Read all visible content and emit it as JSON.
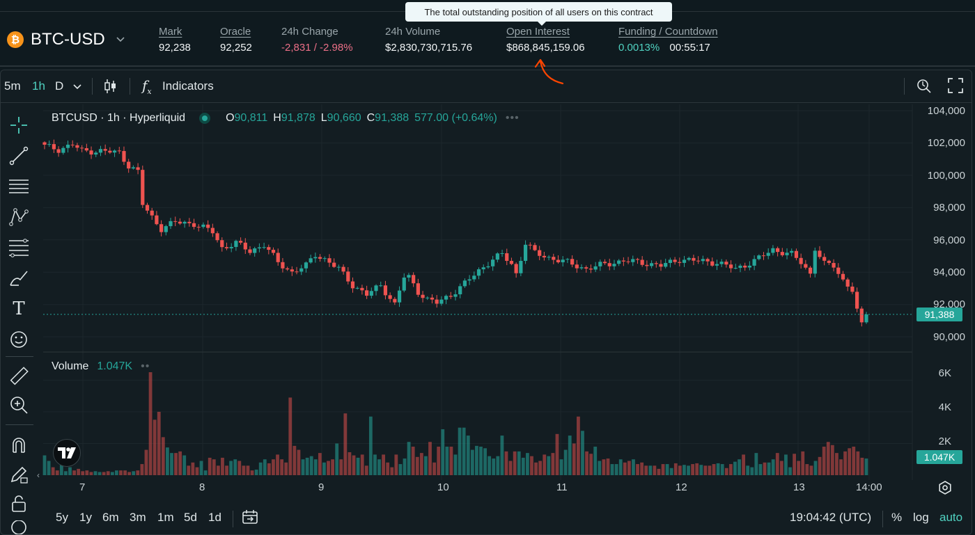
{
  "header": {
    "symbol": "BTC-USD",
    "coin_glyph": "₿",
    "stats": [
      {
        "label": "Mark",
        "value": "92,238",
        "underlined": true
      },
      {
        "label": "Oracle",
        "value": "92,252",
        "underlined": true
      },
      {
        "label": "24h Change",
        "value": "-2,831 / -2.98%",
        "underlined": false
      },
      {
        "label": "24h Volume",
        "value": "$2,830,730,715.76",
        "underlined": false
      },
      {
        "label": "Open Interest",
        "value": "$868,845,159.06",
        "underlined": true
      },
      {
        "label": "Funding / Countdown",
        "value": "0.0013%",
        "value2": "00:55:17",
        "underlined": true
      }
    ],
    "tooltip": "The total outstanding position of all users on this contract"
  },
  "toolbar": {
    "intervals": [
      "5m",
      "1h",
      "D"
    ],
    "active_interval": "1h",
    "indicators_label": "Indicators"
  },
  "legend": {
    "symbol_line": "BTCUSD · 1h · Hyperliquid",
    "open_key": "O",
    "open": "90,811",
    "high_key": "H",
    "high": "91,878",
    "low_key": "L",
    "low": "90,660",
    "close_key": "C",
    "close": "91,388",
    "change": "577.00 (+0.64%)",
    "volume_label": "Volume",
    "volume_value": "1.047K"
  },
  "price_axis": [
    "104,000",
    "102,000",
    "100,000",
    "98,000",
    "96,000",
    "94,000",
    "92,000",
    "90,000"
  ],
  "volume_axis": [
    "6K",
    "4K",
    "2K"
  ],
  "last_price_badge": "91,388",
  "last_volume_badge": "1.047K",
  "time_axis": [
    "7",
    "8",
    "9",
    "10",
    "11",
    "12",
    "13",
    "14:00"
  ],
  "bottom_bar": {
    "ranges": [
      "5y",
      "1y",
      "6m",
      "3m",
      "1m",
      "5d",
      "1d"
    ],
    "clock": "19:04:42 (UTC)",
    "percent": "%",
    "log": "log",
    "auto": "auto"
  },
  "colors": {
    "up": "#26a69a",
    "down": "#ef5350",
    "accent": "#50d2c1",
    "annotation": "#ff4500"
  },
  "chart_data": {
    "type": "candlestick",
    "interval": "1h",
    "y_range": [
      89000,
      104500
    ],
    "volume_range": [
      0,
      7000
    ],
    "close_path": [
      [
        0,
        101800
      ],
      [
        3,
        101600
      ],
      [
        6,
        101900
      ],
      [
        8,
        101500
      ],
      [
        12,
        101500
      ],
      [
        16,
        101400
      ],
      [
        18,
        100600
      ],
      [
        20,
        100200
      ],
      [
        21,
        98200
      ],
      [
        23,
        97400
      ],
      [
        25,
        96700
      ],
      [
        28,
        97100
      ],
      [
        32,
        97000
      ],
      [
        36,
        96500
      ],
      [
        38,
        95500
      ],
      [
        41,
        95800
      ],
      [
        44,
        95300
      ],
      [
        47,
        95700
      ],
      [
        50,
        94600
      ],
      [
        53,
        94000
      ],
      [
        56,
        94400
      ],
      [
        58,
        95100
      ],
      [
        60,
        94800
      ],
      [
        63,
        94200
      ],
      [
        66,
        93200
      ],
      [
        69,
        92600
      ],
      [
        72,
        93200
      ],
      [
        75,
        92000
      ],
      [
        77,
        93700
      ],
      [
        78,
        93700
      ],
      [
        80,
        92800
      ],
      [
        82,
        92300
      ],
      [
        84,
        92100
      ],
      [
        87,
        92600
      ],
      [
        90,
        93300
      ],
      [
        93,
        94100
      ],
      [
        96,
        94800
      ],
      [
        98,
        95100
      ],
      [
        100,
        94500
      ],
      [
        101,
        93900
      ],
      [
        103,
        95800
      ],
      [
        105,
        95200
      ],
      [
        108,
        94900
      ],
      [
        112,
        94600
      ],
      [
        116,
        94200
      ],
      [
        120,
        94500
      ],
      [
        124,
        94700
      ],
      [
        128,
        94600
      ],
      [
        132,
        94400
      ],
      [
        136,
        94800
      ],
      [
        140,
        94700
      ],
      [
        144,
        94600
      ],
      [
        148,
        94200
      ],
      [
        152,
        94700
      ],
      [
        156,
        95400
      ],
      [
        160,
        95100
      ],
      [
        162,
        94600
      ],
      [
        164,
        93900
      ],
      [
        165,
        95500
      ],
      [
        167,
        94500
      ],
      [
        169,
        94400
      ],
      [
        171,
        93500
      ],
      [
        173,
        92900
      ],
      [
        174,
        91600
      ],
      [
        175,
        90700
      ],
      [
        176,
        91388
      ]
    ],
    "volume_bars": [
      1250,
      900,
      500,
      300,
      650,
      250,
      500,
      300,
      400,
      250,
      300,
      200,
      250,
      200,
      200,
      250,
      200,
      300,
      300,
      300,
      200,
      250,
      300,
      700,
      1600,
      6500,
      3500,
      4000,
      2400,
      1750,
      1400,
      1400,
      1500,
      1250,
      600,
      800,
      500,
      900,
      300,
      1100,
      1000,
      600,
      1100,
      600,
      900,
      1000,
      900,
      600,
      600,
      300,
      350,
      800,
      1000,
      750,
      1000,
      1300,
      1000,
      800,
      4900,
      1850,
      1600,
      1000,
      1100,
      1200,
      1000,
      1400,
      800,
      900,
      1000,
      2000,
      1000,
      3900,
      1450,
      1250,
      1100,
      1300,
      600,
      3700,
      1300,
      1000,
      1300,
      800,
      500,
      1300,
      700,
      1050,
      2100,
      1800,
      1150,
      1400,
      1200,
      2100,
      800,
      1800,
      2900,
      1800,
      1800,
      1300,
      3000,
      3000,
      2500,
      1600,
      1850,
      1800,
      1700,
      1200,
      1050,
      1200,
      2500,
      1500,
      900,
      1500,
      1500,
      1100,
      1400,
      1200,
      800,
      900,
      1300,
      1200,
      1400,
      2600,
      1000,
      1600,
      2500,
      2000,
      3700,
      2800,
      1500,
      1350,
      1800,
      900,
      1000,
      1050,
      700,
      700,
      1000,
      800,
      900,
      1000,
      700,
      800,
      600,
      600,
      600,
      400,
      700,
      700,
      450,
      750,
      600,
      650,
      600,
      700,
      750,
      650,
      600,
      600,
      700,
      750,
      700,
      450,
      700,
      850,
      1000,
      1300,
      600,
      500,
      1400,
      700,
      800,
      800,
      1000,
      1400,
      900,
      1300,
      500,
      1350,
      900,
      1500,
      700,
      600,
      900,
      1150,
      1800,
      2100,
      1900,
      1400,
      1000,
      1500,
      1700,
      1800,
      1500,
      1100,
      1050
    ]
  }
}
